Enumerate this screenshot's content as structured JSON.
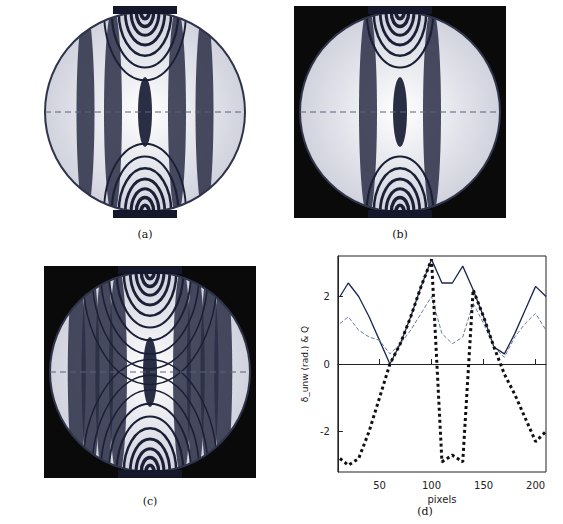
{
  "panels": [
    {
      "label": "(a)"
    },
    {
      "label": "(b)"
    },
    {
      "label": "(c)"
    }
  ],
  "chart_data": {
    "type": "line",
    "title": "(d)",
    "x_label": "pixels",
    "y_label": "δ_unw (rad.) & Q",
    "x": [
      12,
      20,
      30,
      40,
      50,
      60,
      70,
      80,
      90,
      100,
      110,
      120,
      130,
      140,
      150,
      160,
      170,
      180,
      190,
      200,
      210
    ],
    "series": [
      {
        "color": "#1b2750",
        "line_style": "solid",
        "values": [
          2.0,
          2.4,
          2.0,
          1.4,
          0.7,
          0.0,
          0.6,
          1.4,
          2.3,
          3.1,
          2.4,
          2.4,
          2.9,
          2.2,
          1.4,
          0.5,
          0.3,
          0.9,
          1.6,
          2.3,
          2.0
        ]
      },
      {
        "color": "#6d7ba3",
        "line_style": "dashed",
        "values": [
          1.2,
          1.4,
          1.0,
          0.8,
          0.7,
          0.3,
          0.6,
          1.0,
          1.5,
          2.0,
          0.9,
          0.6,
          0.8,
          1.8,
          1.2,
          0.5,
          0.2,
          0.8,
          1.2,
          1.5,
          1.0
        ]
      },
      {
        "color": "#111111",
        "line_style": "dotted",
        "values": [
          -2.8,
          -3.0,
          -2.8,
          -2.0,
          -1.0,
          0.0,
          0.6,
          1.4,
          2.3,
          3.1,
          -2.9,
          -2.7,
          -2.9,
          2.2,
          1.4,
          0.5,
          -0.3,
          -0.9,
          -1.6,
          -2.3,
          -2.0
        ]
      }
    ],
    "xlim": [
      10,
      210
    ],
    "xticks": [
      50,
      100,
      150,
      200
    ],
    "ylim": [
      -3.2,
      3.2
    ],
    "yticks": [
      -2,
      0,
      2
    ],
    "grid": false
  }
}
